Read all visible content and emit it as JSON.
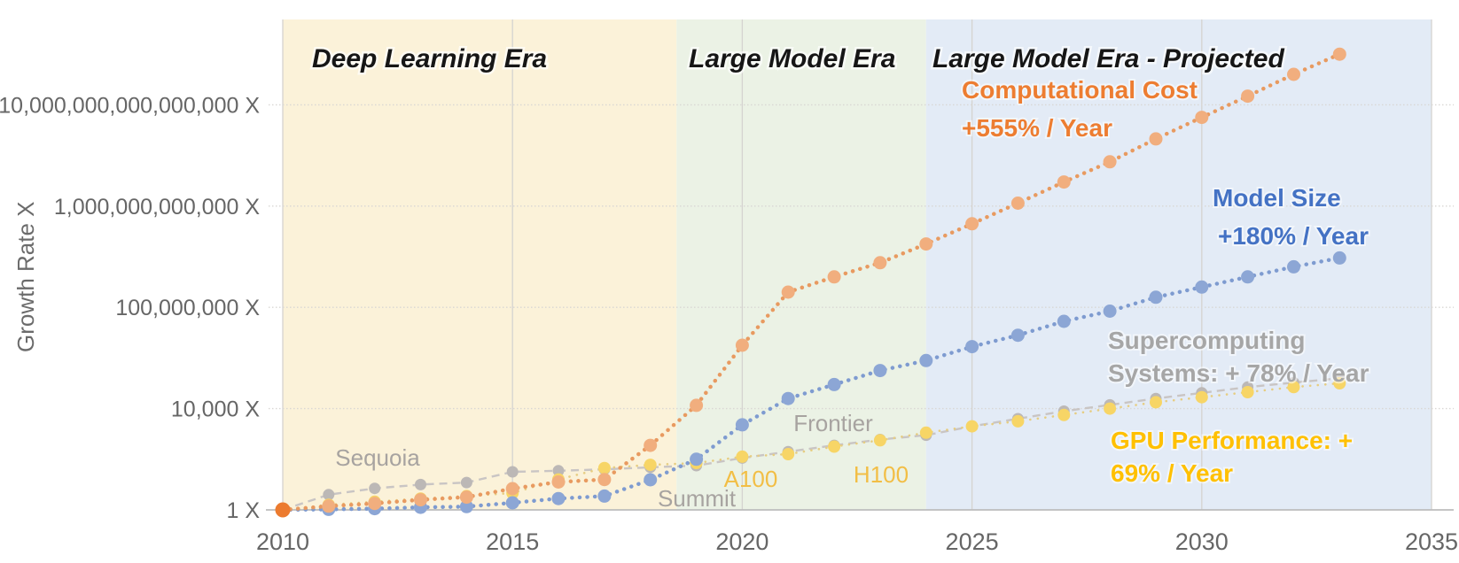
{
  "chart_data": {
    "type": "scatter",
    "title": "",
    "ylabel": "Growth Rate X",
    "y_scale": "log",
    "x_range": [
      2010,
      2035
    ],
    "x_ticks": [
      2010,
      2015,
      2020,
      2025,
      2030,
      2035
    ],
    "y_ticks": [
      {
        "value": 1,
        "label": "1 X"
      },
      {
        "value": 10000,
        "label": "10,000 X"
      },
      {
        "value": 100000000,
        "label": "100,000,000 X"
      },
      {
        "value": 1000000000000,
        "label": "1,000,000,000,000 X"
      },
      {
        "value": 10000000000000000,
        "label": "10,000,000,000,000,000 X"
      }
    ],
    "eras": [
      {
        "id": "deep-learning",
        "label": "Deep Learning Era",
        "start": 2010,
        "end": 2018.57,
        "fill": "#FBF2D9"
      },
      {
        "id": "large-model",
        "label": "Large Model Era",
        "start": 2018.57,
        "end": 2024,
        "fill": "#EBF2E5"
      },
      {
        "id": "large-model-projected",
        "label": "Large Model Era - Projected",
        "start": 2024,
        "end": 2035,
        "fill": "#E3EBF6"
      }
    ],
    "x_years": [
      2010,
      2011,
      2012,
      2013,
      2014,
      2015,
      2016,
      2017,
      2018,
      2019,
      2020,
      2021,
      2022,
      2023,
      2024,
      2025,
      2026,
      2027,
      2028,
      2029,
      2030,
      2031,
      2032,
      2033
    ],
    "series": [
      {
        "id": "supercomputing",
        "name": "Supercomputing Systems",
        "label_lines": [
          "Supercomputing",
          "Systems: + 78% / Year"
        ],
        "label_color": "#A6A6A6",
        "marker_color": "#BCB8B6",
        "line_color": "#C9C5C4",
        "line_style": "dash",
        "values": [
          1,
          4,
          7.1,
          10,
          12,
          32,
          35,
          40,
          48,
          56,
          112,
          200,
          355,
          600,
          890,
          2000,
          4000,
          7900,
          14000,
          25000,
          42000,
          71000,
          107000,
          158000
        ]
      },
      {
        "id": "gpu",
        "name": "GPU Performance",
        "label_lines": [
          "GPU Performance: +",
          "69% / Year"
        ],
        "label_color": "#FFC000",
        "marker_color": "#F7D566",
        "line_color": "#E6CD82",
        "line_style": "dot",
        "values": [
          1,
          1.6,
          2.1,
          2.8,
          3.5,
          4.6,
          16,
          45,
          60,
          71,
          126,
          160,
          316,
          560,
          1120,
          2000,
          3160,
          5600,
          10000,
          17800,
          28200,
          44700,
          70800,
          100000
        ]
      },
      {
        "id": "model_size",
        "name": "Model Size",
        "label_lines": [
          "Model Size",
          "+180% / Year"
        ],
        "label_color": "#4472C4",
        "marker_color": "#8CA6D5",
        "line_color": "#7E9BD0",
        "line_style": "dot",
        "values": [
          1,
          1.05,
          1.12,
          1.26,
          1.35,
          1.9,
          2.8,
          3.5,
          15.5,
          100,
          2300,
          25000,
          89000,
          320000,
          790000,
          2800000,
          7900000,
          28000000,
          71000000,
          250000000,
          630000000,
          1600000000,
          4000000000,
          8900000000
        ]
      },
      {
        "id": "computational_cost",
        "name": "Computational Cost",
        "label_lines": [
          "Computational Cost",
          "+555% / Year"
        ],
        "label_color": "#ED7D31",
        "marker_color": "#F1AE7E",
        "first_marker_color": "#EC7B2F",
        "line_color": "#E89A60",
        "line_style": "dot",
        "values": [
          1,
          1.4,
          1.8,
          2.5,
          3.2,
          6.9,
          12.6,
          15.8,
          355,
          13500,
          3200000,
          400000000,
          1600000000,
          5800000000,
          32000000000,
          200000000000,
          1300000000000,
          8900000000000,
          56000000000000,
          450000000000000,
          3200000000000000,
          22000000000000000,
          160000000000000000,
          1000000000000000000
        ]
      }
    ],
    "annotations": [
      {
        "id": "sequoia",
        "text": "Sequoia",
        "color": "#A7A3A0"
      },
      {
        "id": "summit",
        "text": "Summit",
        "color": "#A7A3A0"
      },
      {
        "id": "frontier",
        "text": "Frontier",
        "color": "#A7A3A0"
      },
      {
        "id": "a100",
        "text": "A100",
        "color": "#F2BE45"
      },
      {
        "id": "h100",
        "text": "H100",
        "color": "#F2BE45"
      }
    ]
  }
}
